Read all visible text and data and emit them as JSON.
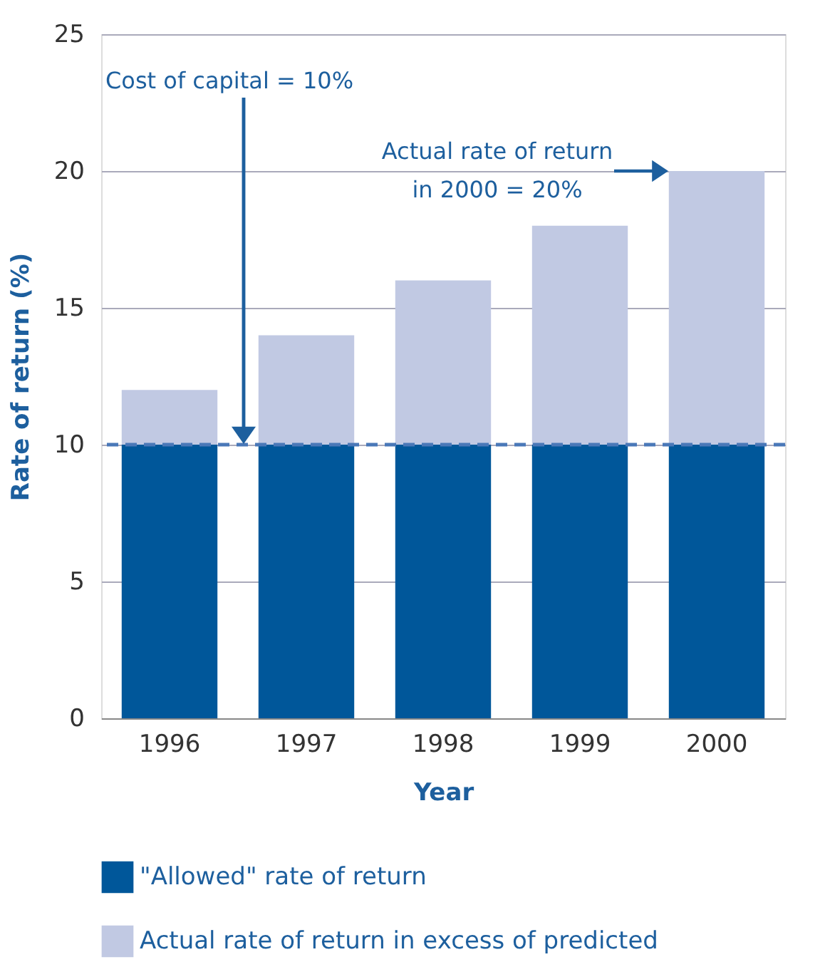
{
  "chart_data": {
    "type": "bar",
    "stacked": true,
    "xlabel": "Year",
    "ylabel": "Rate of return (%)",
    "categories": [
      "1996",
      "1997",
      "1998",
      "1999",
      "2000"
    ],
    "series": [
      {
        "name": "\"Allowed\" rate of return",
        "color": "#00579a",
        "values": [
          10,
          10,
          10,
          10,
          10
        ]
      },
      {
        "name": "Actual rate of return in excess of predicted",
        "color": "#c1c9e3",
        "values": [
          2,
          4,
          6,
          8,
          10
        ]
      }
    ],
    "ylim": [
      0,
      25
    ],
    "yticks": [
      0,
      5,
      10,
      15,
      20,
      25
    ],
    "grid": "y",
    "legend": "bottom",
    "ref_lines": [
      {
        "axis": "y",
        "value": 10,
        "color": "#4a78b8",
        "line_style": "dashed"
      }
    ],
    "annotations": [
      "Cost of capital = 10%",
      "Actual rate of return\nin 2000 = 20%"
    ]
  }
}
